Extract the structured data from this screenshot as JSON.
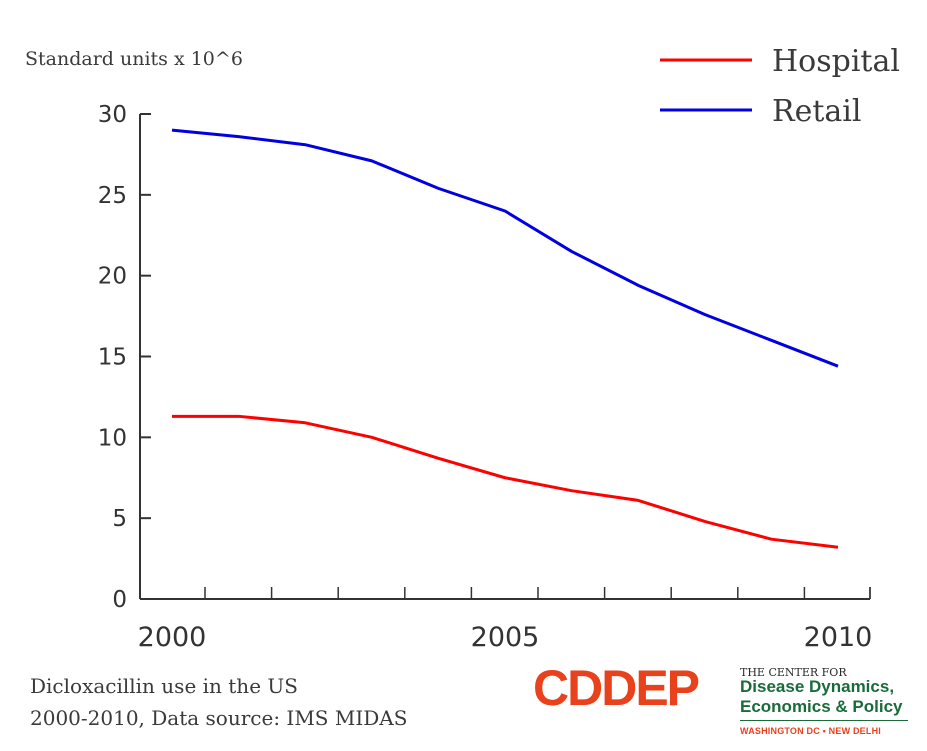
{
  "chart_data": {
    "type": "line",
    "ylabel": "Standard units x 10^6",
    "x": [
      2000,
      2001,
      2002,
      2003,
      2004,
      2005,
      2006,
      2007,
      2008,
      2009,
      2010
    ],
    "series": [
      {
        "name": "Hospital",
        "color": "#ff0000",
        "values": [
          11.3,
          11.3,
          10.9,
          10.0,
          8.7,
          7.5,
          6.7,
          6.1,
          4.8,
          3.7,
          3.2
        ]
      },
      {
        "name": "Retail",
        "color": "#0000e0",
        "values": [
          29.0,
          28.6,
          28.1,
          27.1,
          25.4,
          24.0,
          21.5,
          19.4,
          17.6,
          16.0,
          14.4
        ]
      }
    ],
    "ylim": [
      0,
      30
    ],
    "yticks": [
      0,
      5,
      10,
      15,
      20,
      25,
      30
    ],
    "xticks": [
      2000,
      2005,
      2010
    ],
    "legend_position": "top-right",
    "grid": false
  },
  "caption": {
    "line1": "Dicloxacillin use in the US",
    "line2": "2000-2010, Data source: IMS MIDAS"
  },
  "logo": {
    "mark": "CDDEP",
    "mark_color": "#e8411c",
    "line1": "THE CENTER FOR",
    "line2": "Disease Dynamics,",
    "line3": "Economics & Policy",
    "line4": "WASHINGTON DC • NEW DELHI",
    "org_color": "#1a6b3a",
    "line4_color": "#e8411c"
  }
}
